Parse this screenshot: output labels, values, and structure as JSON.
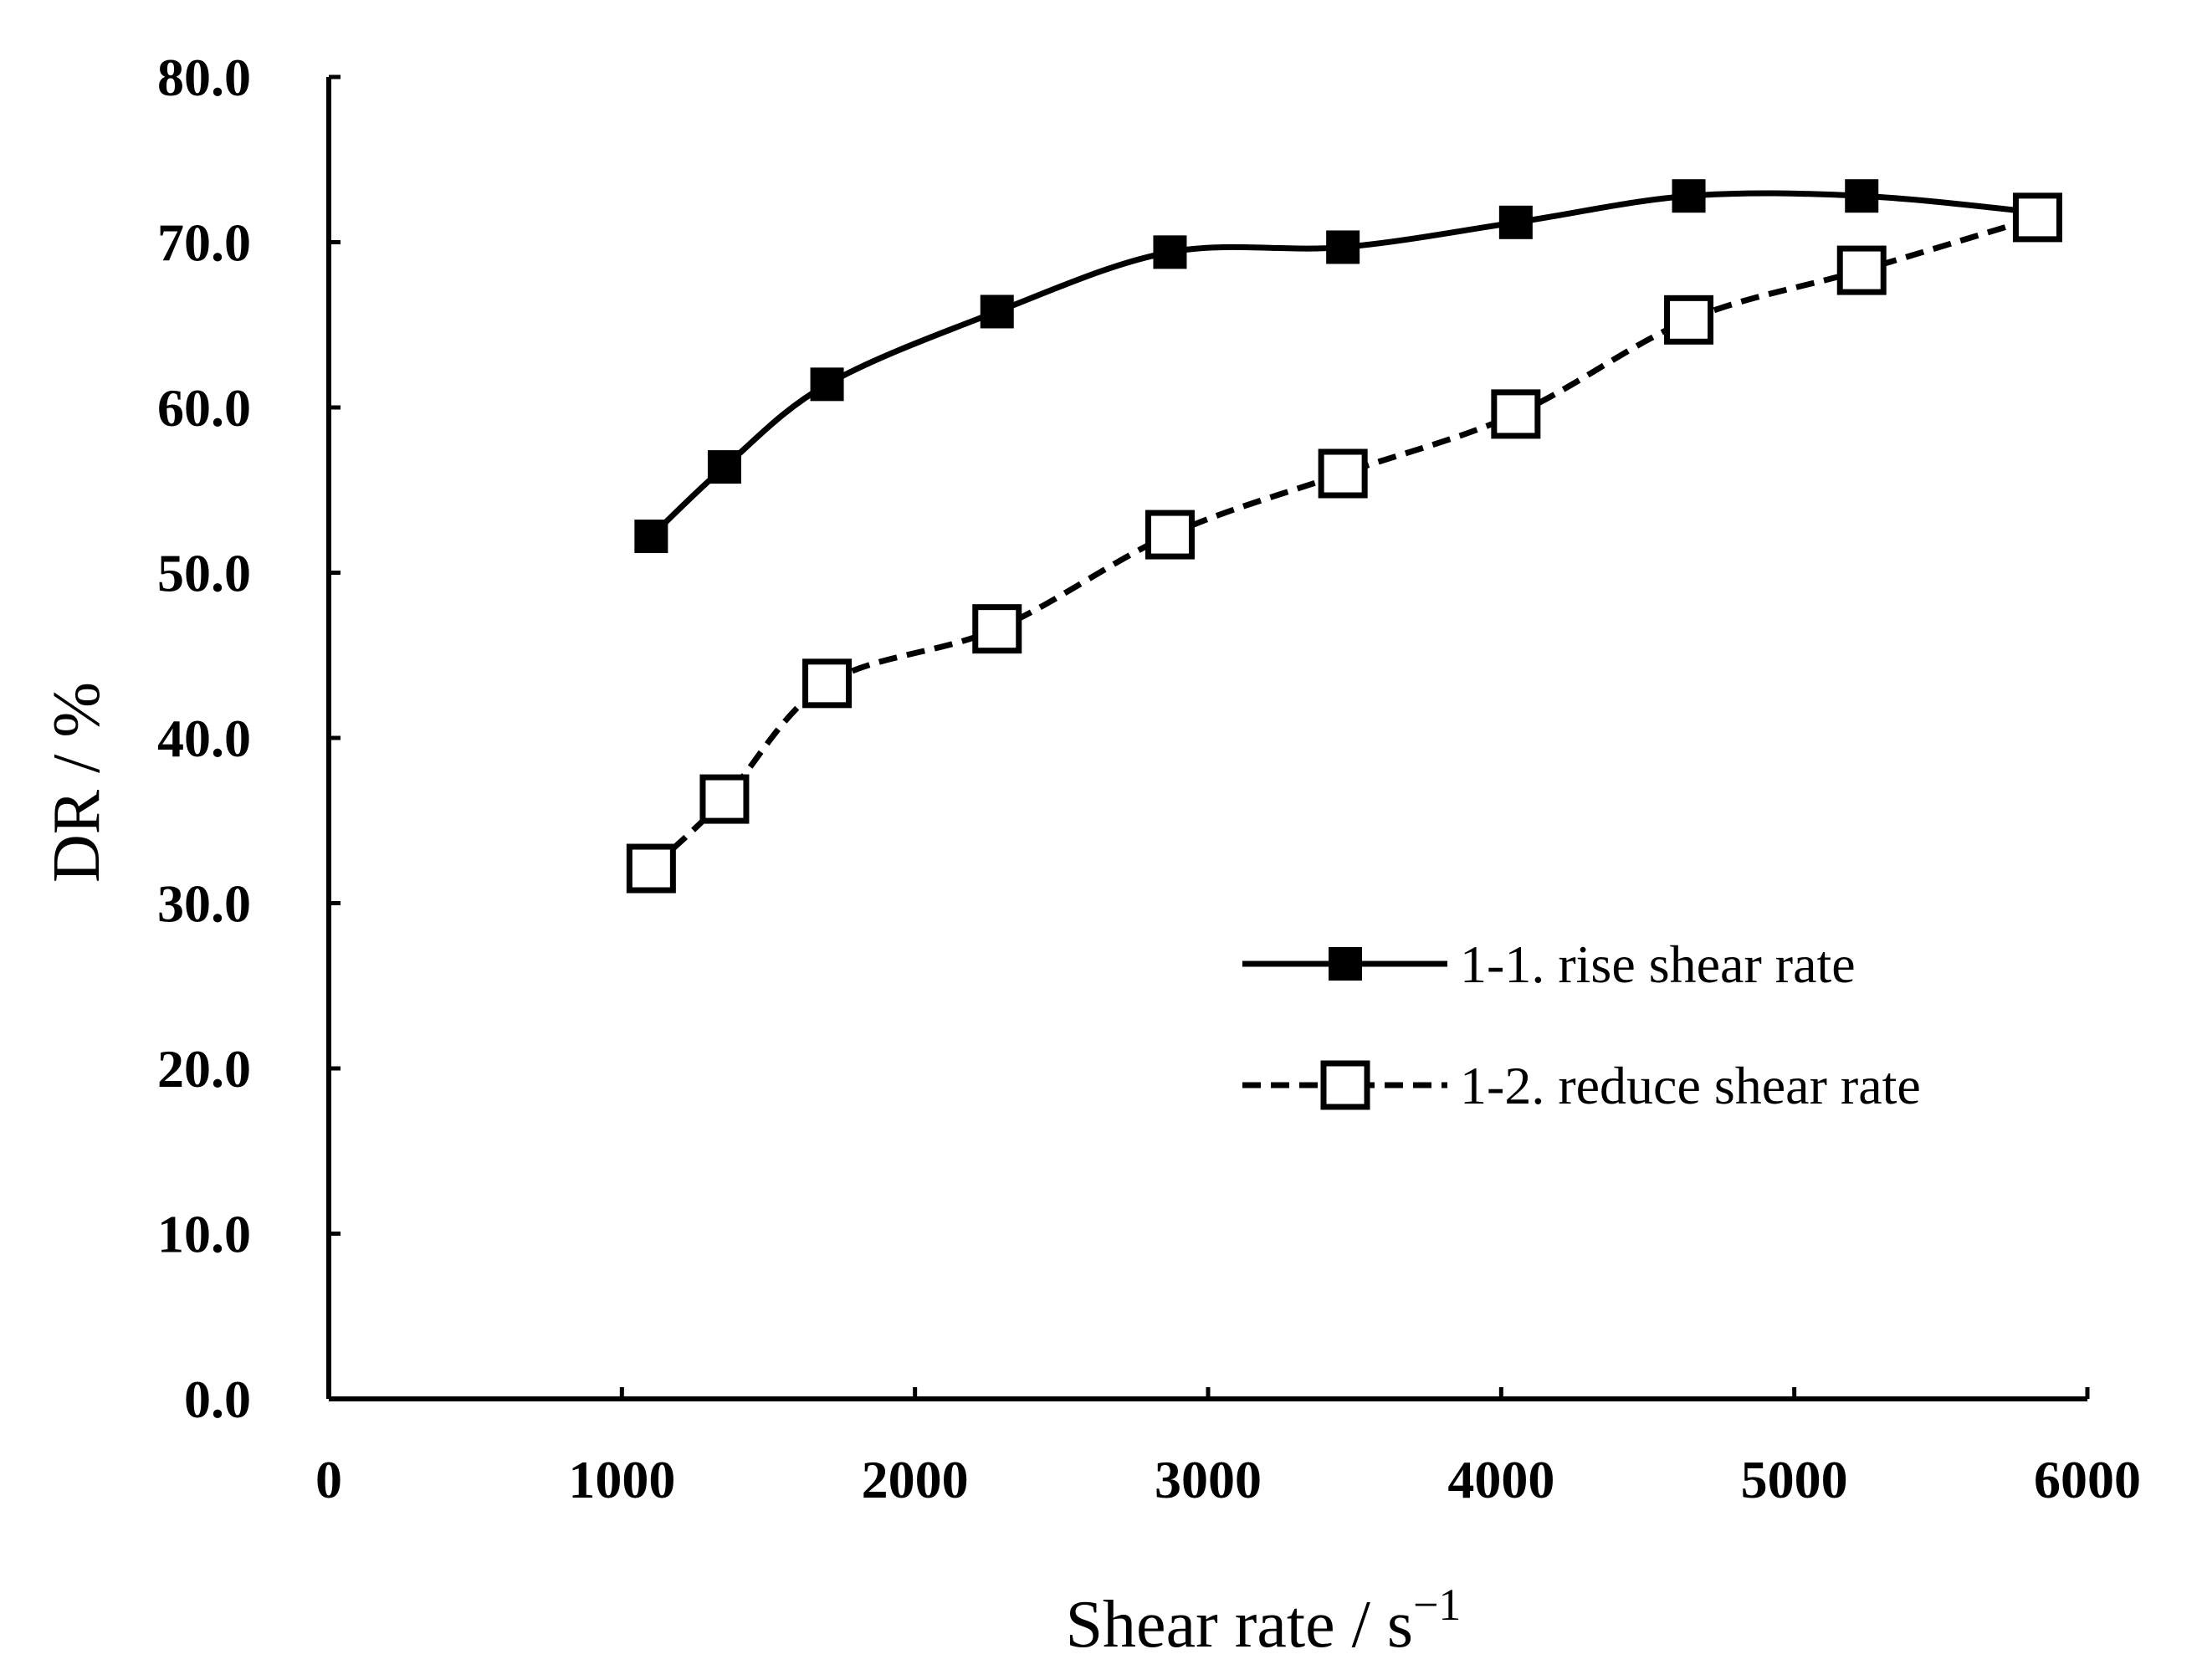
{
  "chart_data": {
    "type": "line",
    "title": "",
    "xlabel": "Shear rate / s",
    "xlabel_exponent": "−1",
    "ylabel": "DR / %",
    "xlim": [
      0,
      6000
    ],
    "ylim": [
      0,
      80
    ],
    "xticks": [
      "0",
      "1000",
      "2000",
      "3000",
      "4000",
      "5000",
      "6000"
    ],
    "yticks": [
      "0.0",
      "10.0",
      "20.0",
      "30.0",
      "40.0",
      "50.0",
      "60.0",
      "70.0",
      "80.0"
    ],
    "grid": false,
    "legend_position": "right",
    "series": [
      {
        "name": "1-1. rise shear rate",
        "line_style": "solid",
        "marker": "filled-square",
        "color": "#000000",
        "x": [
          1100,
          1350,
          1700,
          2280,
          2870,
          3460,
          4050,
          4640,
          5230,
          5830
        ],
        "y": [
          52.2,
          56.4,
          61.4,
          65.8,
          69.4,
          69.7,
          71.2,
          72.8,
          72.8,
          71.8
        ]
      },
      {
        "name": "1-2. reduce shear rate",
        "line_style": "dashed",
        "marker": "open-square",
        "color": "#000000",
        "x": [
          1100,
          1350,
          1700,
          2280,
          2870,
          3460,
          4050,
          4640,
          5230,
          5830
        ],
        "y": [
          32.1,
          36.3,
          43.3,
          46.6,
          52.3,
          56.0,
          59.6,
          65.3,
          68.3,
          71.5
        ]
      }
    ]
  }
}
